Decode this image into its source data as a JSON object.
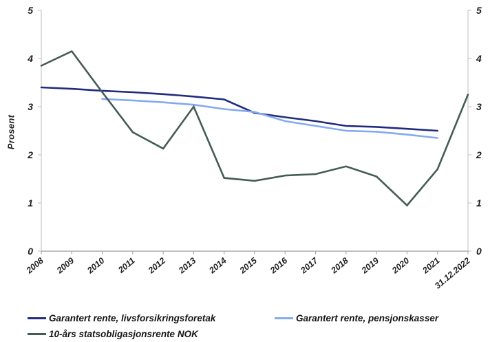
{
  "chart_data": {
    "type": "line",
    "title": "",
    "ylabel": "Prosent",
    "xlabel": "",
    "ylim": [
      0,
      5
    ],
    "yticks": [
      0,
      1,
      2,
      3,
      4,
      5
    ],
    "grid": false,
    "legend_position": "bottom",
    "axis_color": "#C9C9C9",
    "baseline_color": "#ABABAB",
    "text_color": "#1f1f1f",
    "x": [
      "2008",
      "2009",
      "2010",
      "2011",
      "2012",
      "2013",
      "2014",
      "2015",
      "2016",
      "2017",
      "2018",
      "2019",
      "2020",
      "2021",
      "31.12.2022"
    ],
    "series": [
      {
        "name": "Garantert rente, livsforsikringsforetak",
        "color": "#212B7D",
        "values": [
          3.4,
          3.37,
          3.33,
          3.3,
          3.26,
          3.21,
          3.15,
          2.87,
          2.78,
          2.7,
          2.6,
          2.58,
          2.54,
          2.5,
          null
        ]
      },
      {
        "name": "Garantert rente, pensjonskasser",
        "color": "#84AAF0",
        "values": [
          null,
          null,
          3.16,
          3.13,
          3.09,
          3.04,
          2.95,
          2.89,
          2.7,
          2.6,
          2.5,
          2.48,
          2.42,
          2.35,
          null
        ]
      },
      {
        "name": "10-års statsobligasjonsrente NOK",
        "color": "#445B56",
        "values": [
          3.85,
          4.15,
          3.3,
          2.47,
          2.13,
          3.0,
          1.52,
          1.46,
          1.57,
          1.6,
          1.76,
          1.55,
          0.95,
          1.7,
          3.25
        ]
      }
    ]
  }
}
